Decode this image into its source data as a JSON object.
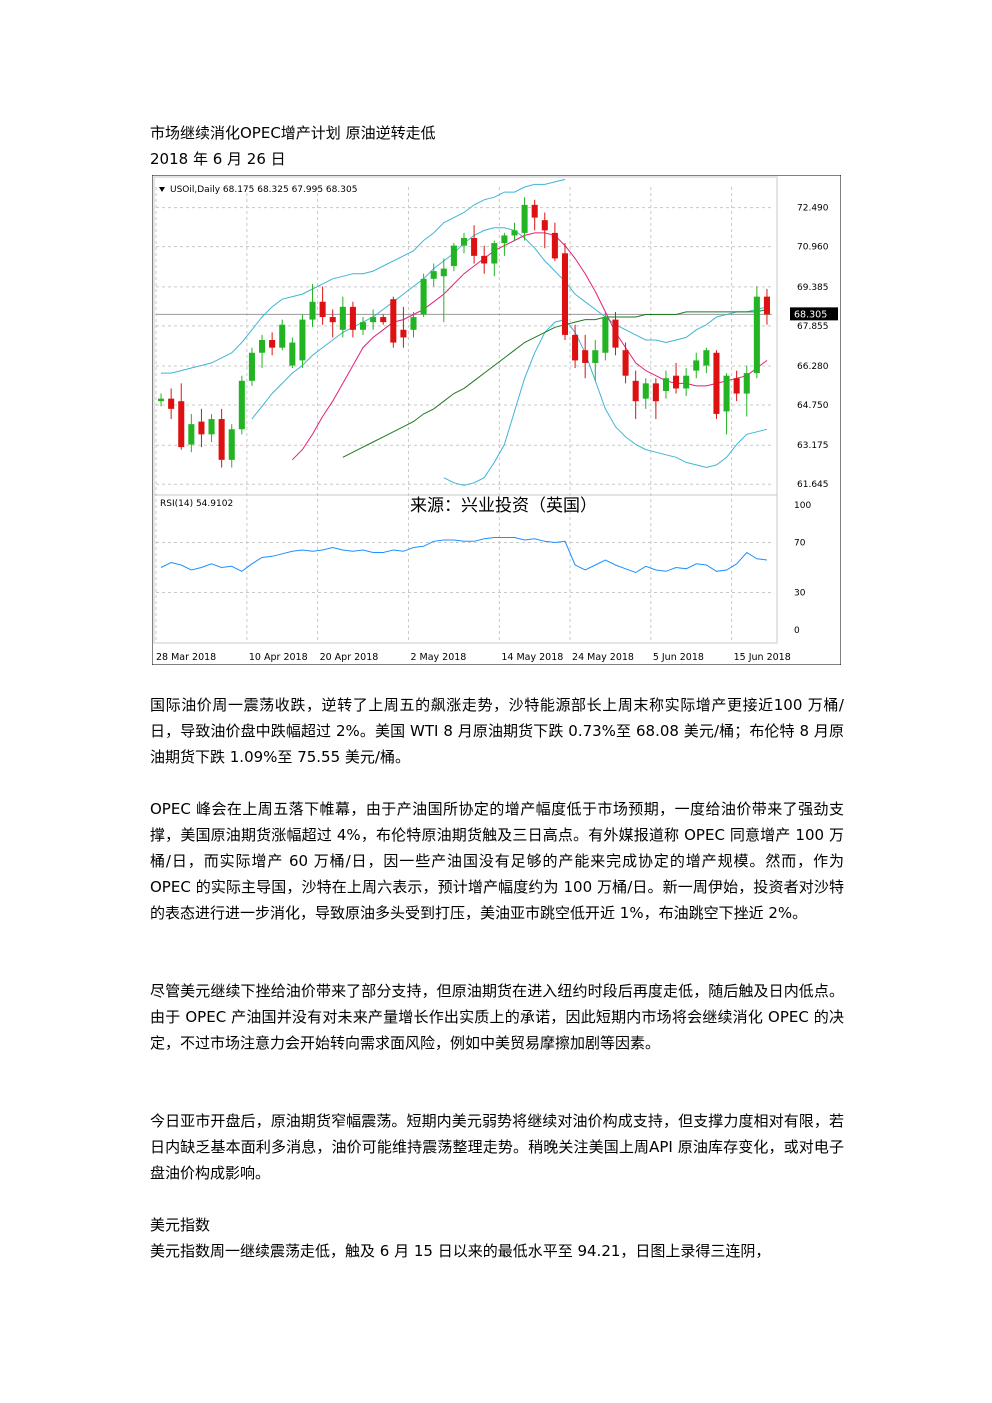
{
  "article": {
    "title": "市场继续消化OPEC增产计划 原油逆转走低",
    "date": "2018 年 6 月 26 日",
    "paragraphs": [
      "国际油价周一震荡收跌，逆转了上周五的飙涨走势，沙特能源部长上周末称实际增产更接近100 万桶/日，导致油价盘中跌幅超过 2%。美国 WTI 8 月原油期货下跌 0.73%至 68.08 美元/桶；布伦特 8 月原油期货下跌 1.09%至 75.55 美元/桶。",
      "OPEC 峰会在上周五落下帷幕，由于产油国所协定的增产幅度低于市场预期，一度给油价带来了强劲支撑，美国原油期货涨幅超过 4%，布伦特原油期货触及三日高点。有外媒报道称 OPEC 同意增产 100 万桶/日，而实际增产 60 万桶/日，因一些产油国没有足够的产能来完成协定的增产规模。然而，作为 OPEC 的实际主导国，沙特在上周六表示，预计增产幅度约为 100 万桶/日。新一周伊始，投资者对沙特的表态进行进一步消化，导致原油多头受到打压，美油亚市跳空低开近 1%，布油跳空下挫近 2%。",
      "尽管美元继续下挫给油价带来了部分支持，但原油期货在进入纽约时段后再度走低，随后触及日内低点。由于 OPEC 产油国并没有对未来产量增长作出实质上的承诺，因此短期内市场将会继续消化 OPEC 的决定，不过市场注意力会开始转向需求面风险，例如中美贸易摩擦加剧等因素。",
      "今日亚市开盘后，原油期货窄幅震荡。短期内美元弱势将继续对油价构成支持，但支撑力度相对有限，若日内缺乏基本面利多消息，油价可能维持震荡整理走势。稍晚关注美国上周API 原油库存变化，或对电子盘油价构成影响。"
    ],
    "section_heading": "美元指数",
    "section_text": "美元指数周一继续震荡走低，触及 6 月 15 日以来的最低水平至 94.21，日图上录得三连阴，"
  },
  "chart_data": {
    "type": "candlestick",
    "symbol_header": "USOil,Daily  68.175 68.325 67.995 68.305",
    "source_label": "来源：兴业投资（英国）",
    "current_price_label": "68.305",
    "price_ticks": [
      "72.490",
      "70.960",
      "69.385",
      "67.855",
      "66.280",
      "64.750",
      "63.175",
      "61.645"
    ],
    "price_tick_values": [
      72.49,
      70.96,
      69.385,
      67.855,
      66.28,
      64.75,
      63.175,
      61.645
    ],
    "price_range": [
      61.3,
      73.3
    ],
    "current_price": 68.305,
    "date_labels": [
      "28 Mar 2018",
      "10 Apr 2018",
      "20 Apr 2018",
      "2 May 2018",
      "14 May 2018",
      "24 May 2018",
      "5 Jun 2018",
      "15 Jun 2018"
    ],
    "date_label_bars": [
      0,
      9,
      16,
      25,
      34,
      41,
      49,
      57
    ],
    "rsi": {
      "label": "RSI(14) 54.9102",
      "ticks": [
        "100",
        "70",
        "30",
        "0"
      ],
      "tick_values": [
        100,
        70,
        30,
        0
      ],
      "values": [
        50,
        54,
        52,
        48,
        50,
        53,
        50,
        51,
        47,
        53,
        58,
        59,
        61,
        63,
        64,
        63,
        64,
        66,
        64,
        63,
        64,
        62,
        62,
        64,
        63,
        66,
        67,
        71,
        72,
        72,
        71,
        71,
        73,
        74,
        74,
        74,
        72,
        73,
        71,
        70,
        71,
        52,
        48,
        52,
        56,
        52,
        49,
        46,
        51,
        48,
        47,
        50,
        49,
        53,
        52,
        47,
        48,
        53,
        62,
        57,
        56
      ]
    },
    "candles": [
      {
        "o": 64.9,
        "h": 65.2,
        "l": 64.7,
        "c": 65.0
      },
      {
        "o": 65.0,
        "h": 65.4,
        "l": 64.2,
        "c": 64.6
      },
      {
        "o": 64.9,
        "h": 65.6,
        "l": 63.0,
        "c": 63.1
      },
      {
        "o": 63.2,
        "h": 64.4,
        "l": 62.9,
        "c": 64.0
      },
      {
        "o": 64.1,
        "h": 64.6,
        "l": 63.1,
        "c": 63.6
      },
      {
        "o": 63.6,
        "h": 64.4,
        "l": 63.3,
        "c": 64.2
      },
      {
        "o": 64.2,
        "h": 64.6,
        "l": 62.3,
        "c": 62.6
      },
      {
        "o": 62.6,
        "h": 64.0,
        "l": 62.3,
        "c": 63.8
      },
      {
        "o": 63.8,
        "h": 65.9,
        "l": 63.6,
        "c": 65.7
      },
      {
        "o": 65.7,
        "h": 67.0,
        "l": 65.5,
        "c": 66.8
      },
      {
        "o": 66.8,
        "h": 67.5,
        "l": 66.2,
        "c": 67.3
      },
      {
        "o": 67.3,
        "h": 67.6,
        "l": 66.7,
        "c": 67.0
      },
      {
        "o": 67.0,
        "h": 68.1,
        "l": 66.9,
        "c": 67.9
      },
      {
        "o": 66.3,
        "h": 67.4,
        "l": 66.2,
        "c": 67.2
      },
      {
        "o": 66.5,
        "h": 68.3,
        "l": 66.2,
        "c": 68.1
      },
      {
        "o": 68.1,
        "h": 69.5,
        "l": 67.8,
        "c": 68.8
      },
      {
        "o": 68.8,
        "h": 69.4,
        "l": 67.9,
        "c": 68.2
      },
      {
        "o": 68.2,
        "h": 68.5,
        "l": 67.4,
        "c": 68.0
      },
      {
        "o": 67.7,
        "h": 69.0,
        "l": 67.4,
        "c": 68.6
      },
      {
        "o": 68.6,
        "h": 68.8,
        "l": 67.4,
        "c": 67.7
      },
      {
        "o": 67.7,
        "h": 68.2,
        "l": 67.5,
        "c": 68.0
      },
      {
        "o": 68.0,
        "h": 68.5,
        "l": 67.7,
        "c": 68.2
      },
      {
        "o": 68.2,
        "h": 68.3,
        "l": 67.9,
        "c": 68.0
      },
      {
        "o": 68.9,
        "h": 69.0,
        "l": 67.0,
        "c": 67.2
      },
      {
        "o": 67.7,
        "h": 68.6,
        "l": 67.0,
        "c": 67.4
      },
      {
        "o": 67.7,
        "h": 68.4,
        "l": 67.4,
        "c": 68.2
      },
      {
        "o": 68.3,
        "h": 69.9,
        "l": 68.2,
        "c": 69.7
      },
      {
        "o": 69.7,
        "h": 70.3,
        "l": 69.4,
        "c": 70.0
      },
      {
        "o": 69.8,
        "h": 70.5,
        "l": 68.0,
        "c": 70.1
      },
      {
        "o": 70.2,
        "h": 71.1,
        "l": 70.0,
        "c": 71.0
      },
      {
        "o": 71.0,
        "h": 71.5,
        "l": 70.7,
        "c": 71.3
      },
      {
        "o": 71.3,
        "h": 71.8,
        "l": 70.3,
        "c": 70.6
      },
      {
        "o": 70.6,
        "h": 71.0,
        "l": 69.9,
        "c": 70.3
      },
      {
        "o": 70.3,
        "h": 71.2,
        "l": 69.8,
        "c": 71.1
      },
      {
        "o": 71.1,
        "h": 71.5,
        "l": 70.6,
        "c": 71.4
      },
      {
        "o": 71.4,
        "h": 71.9,
        "l": 71.2,
        "c": 71.6
      },
      {
        "o": 71.5,
        "h": 72.9,
        "l": 71.2,
        "c": 72.6
      },
      {
        "o": 72.6,
        "h": 72.8,
        "l": 71.6,
        "c": 72.1
      },
      {
        "o": 72.0,
        "h": 72.3,
        "l": 70.9,
        "c": 71.6
      },
      {
        "o": 71.5,
        "h": 71.9,
        "l": 70.4,
        "c": 70.5
      },
      {
        "o": 70.7,
        "h": 71.1,
        "l": 67.3,
        "c": 67.5
      },
      {
        "o": 67.5,
        "h": 67.9,
        "l": 66.2,
        "c": 66.5
      },
      {
        "o": 66.9,
        "h": 67.5,
        "l": 65.8,
        "c": 66.4
      },
      {
        "o": 66.4,
        "h": 67.3,
        "l": 65.7,
        "c": 66.9
      },
      {
        "o": 66.8,
        "h": 68.4,
        "l": 66.5,
        "c": 68.2
      },
      {
        "o": 68.1,
        "h": 68.4,
        "l": 66.7,
        "c": 67.0
      },
      {
        "o": 66.9,
        "h": 67.2,
        "l": 65.6,
        "c": 65.9
      },
      {
        "o": 65.7,
        "h": 66.1,
        "l": 64.2,
        "c": 64.9
      },
      {
        "o": 65.0,
        "h": 65.8,
        "l": 64.6,
        "c": 65.6
      },
      {
        "o": 65.6,
        "h": 65.8,
        "l": 64.2,
        "c": 64.9
      },
      {
        "o": 65.3,
        "h": 66.1,
        "l": 65.0,
        "c": 65.8
      },
      {
        "o": 65.9,
        "h": 66.4,
        "l": 65.2,
        "c": 65.4
      },
      {
        "o": 65.4,
        "h": 66.2,
        "l": 65.1,
        "c": 65.9
      },
      {
        "o": 66.1,
        "h": 66.8,
        "l": 65.8,
        "c": 66.5
      },
      {
        "o": 66.3,
        "h": 67.0,
        "l": 66.0,
        "c": 66.9
      },
      {
        "o": 66.8,
        "h": 66.9,
        "l": 64.2,
        "c": 64.4
      },
      {
        "o": 64.5,
        "h": 66.0,
        "l": 63.6,
        "c": 65.9
      },
      {
        "o": 65.8,
        "h": 66.1,
        "l": 64.9,
        "c": 65.2
      },
      {
        "o": 65.2,
        "h": 66.3,
        "l": 64.3,
        "c": 66.0
      },
      {
        "o": 66.0,
        "h": 69.4,
        "l": 65.8,
        "c": 69.0
      },
      {
        "o": 69.0,
        "h": 69.3,
        "l": 67.9,
        "c": 68.3
      }
    ],
    "indicators": {
      "bb_upper": [
        66,
        66,
        66.1,
        66.2,
        66.3,
        66.4,
        66.6,
        66.8,
        67.2,
        67.7,
        68.2,
        68.6,
        68.9,
        69.0,
        69.1,
        69.3,
        69.5,
        69.7,
        69.8,
        69.9,
        69.9,
        70.0,
        70.2,
        70.4,
        70.6,
        70.8,
        71.2,
        71.5,
        71.9,
        72.1,
        72.3,
        72.6,
        72.8,
        72.9,
        73.1,
        73.1,
        73.3,
        73.4,
        73.4,
        73.5,
        73.6,
        null,
        null,
        null,
        null,
        null,
        null,
        null,
        null,
        null,
        null,
        null,
        null,
        null,
        null,
        null,
        null,
        null,
        null,
        null,
        null
      ],
      "bb_lower": [
        null,
        null,
        null,
        null,
        null,
        null,
        null,
        null,
        null,
        null,
        null,
        null,
        null,
        null,
        null,
        null,
        null,
        null,
        null,
        null,
        null,
        null,
        null,
        null,
        null,
        null,
        null,
        null,
        61.9,
        61.7,
        61.6,
        61.7,
        61.9,
        62.5,
        63.2,
        64.5,
        65.8,
        66.8,
        67.6,
        68.0,
        68.1,
        67.6,
        66.8,
        65.7,
        64.6,
        63.9,
        63.5,
        63.2,
        63.0,
        62.9,
        62.8,
        62.7,
        62.5,
        62.4,
        62.3,
        62.4,
        62.7,
        63.2,
        63.6,
        63.7,
        63.8
      ],
      "bb_mid": [
        null,
        null,
        null,
        null,
        null,
        null,
        null,
        null,
        null,
        64.2,
        64.7,
        65.2,
        65.6,
        66.0,
        66.3,
        66.7,
        67.0,
        67.3,
        67.6,
        67.8,
        68.0,
        68.2,
        68.5,
        68.8,
        69.1,
        69.4,
        69.7,
        70.1,
        70.4,
        70.7,
        71.1,
        71.4,
        71.6,
        71.7,
        71.7,
        71.6,
        71.3,
        70.9,
        70.4,
        70.0,
        69.6,
        69.1,
        68.8,
        68.5,
        68.2,
        67.9,
        67.7,
        67.5,
        67.3,
        67.3,
        67.2,
        67.3,
        67.4,
        67.7,
        67.9,
        68.2,
        68.3,
        68.4,
        68.4,
        68.5,
        68.6
      ],
      "ma_red": [
        null,
        null,
        null,
        null,
        null,
        null,
        null,
        null,
        null,
        null,
        null,
        null,
        null,
        62.6,
        63.0,
        63.6,
        64.3,
        64.9,
        65.6,
        66.3,
        67.0,
        67.4,
        67.7,
        68.0,
        68.1,
        68.3,
        68.5,
        68.8,
        69.1,
        69.5,
        69.9,
        70.2,
        70.5,
        70.8,
        71.0,
        71.2,
        71.4,
        71.5,
        71.5,
        71.4,
        71.0,
        70.5,
        69.9,
        69.2,
        68.4,
        67.6,
        67.0,
        66.4,
        66.1,
        65.9,
        65.7,
        65.6,
        65.6,
        65.5,
        65.5,
        65.6,
        65.7,
        65.8,
        65.9,
        66.2,
        66.5
      ],
      "ma_green": [
        null,
        null,
        null,
        null,
        null,
        null,
        null,
        null,
        null,
        null,
        null,
        null,
        null,
        null,
        null,
        null,
        null,
        null,
        62.7,
        62.9,
        63.1,
        63.3,
        63.5,
        63.7,
        63.9,
        64.1,
        64.4,
        64.6,
        64.9,
        65.2,
        65.4,
        65.7,
        66.0,
        66.3,
        66.6,
        66.9,
        67.2,
        67.4,
        67.6,
        67.8,
        67.9,
        68.0,
        68.1,
        68.1,
        68.2,
        68.2,
        68.2,
        68.2,
        68.3,
        68.3,
        68.3,
        68.3,
        68.4,
        68.4,
        68.4,
        68.4,
        68.4,
        68.4,
        68.4,
        68.4,
        68.5
      ],
      "ma_black": [
        null,
        null,
        null,
        null,
        null,
        null,
        null,
        null,
        null,
        null,
        null,
        null,
        null,
        null,
        null,
        null,
        null,
        null,
        null,
        null,
        null,
        null,
        null,
        null,
        null,
        null,
        null,
        null,
        null,
        null,
        null,
        null,
        null,
        null,
        null,
        null,
        null,
        null,
        null,
        null,
        null,
        null,
        null,
        null,
        null,
        null,
        null,
        null,
        null,
        null,
        null,
        null,
        null,
        null,
        null,
        null,
        null,
        null,
        null,
        null,
        null
      ]
    }
  }
}
